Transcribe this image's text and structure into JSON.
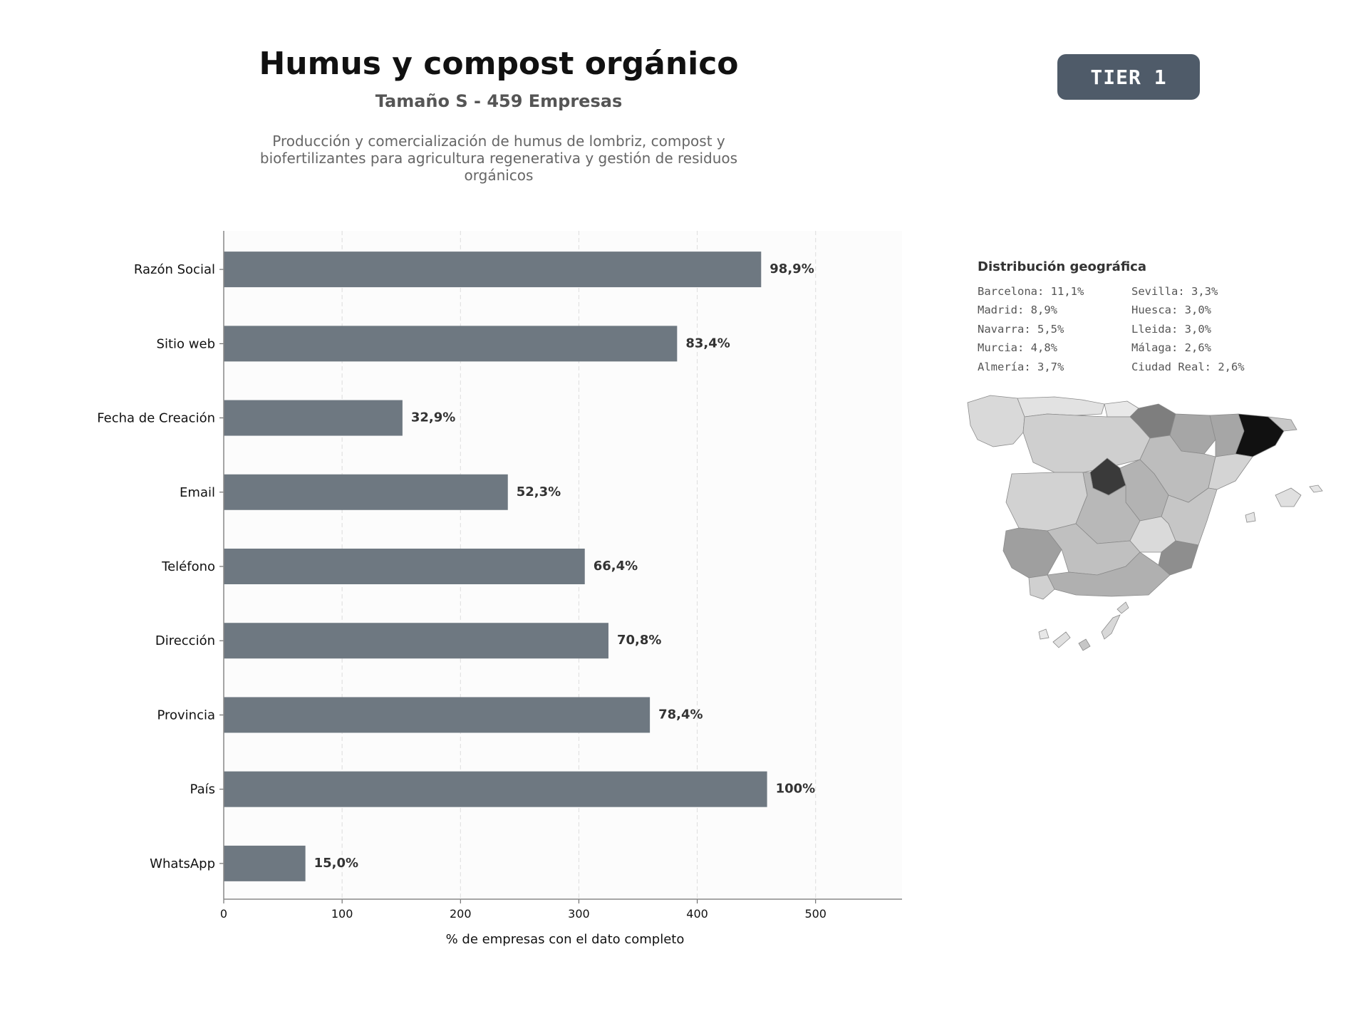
{
  "header": {
    "title": "Humus y compost orgánico",
    "subtitle": "Tamaño S - 459 Empresas",
    "description": "Producción y comercialización de humus de lombriz, compost y biofertilizantes para agricultura regenerativa y gestión de residuos orgánicos"
  },
  "badge": {
    "label": "TIER 1"
  },
  "chart_data": {
    "type": "bar",
    "orientation": "horizontal",
    "categories": [
      "Razón Social",
      "Sitio web",
      "Fecha de Creación",
      "Email",
      "Teléfono",
      "Dirección",
      "Provincia",
      "País",
      "WhatsApp"
    ],
    "values": [
      454,
      383,
      151,
      240,
      305,
      325,
      360,
      459,
      69
    ],
    "data_labels": [
      "98,9%",
      "83,4%",
      "32,9%",
      "52,3%",
      "66,4%",
      "70,8%",
      "78,4%",
      "100%",
      "15,0%"
    ],
    "xlabel": "% de empresas con el dato completo",
    "ylabel": "",
    "xlim": [
      0,
      573
    ],
    "xticks": [
      0,
      100,
      200,
      300,
      400,
      500
    ],
    "grid": "x-dashed",
    "bar_color": "#6e7881"
  },
  "geo": {
    "title": "Distribución geográfica",
    "items": [
      "Barcelona: 11,1%",
      "Sevilla: 3,3%",
      "Madrid: 8,9%",
      "Huesca: 3,0%",
      "Navarra: 5,5%",
      "Lleida: 3,0%",
      "Murcia: 4,8%",
      "Málaga: 2,6%",
      "Almería: 3,7%",
      "Ciudad Real: 2,6%"
    ]
  }
}
